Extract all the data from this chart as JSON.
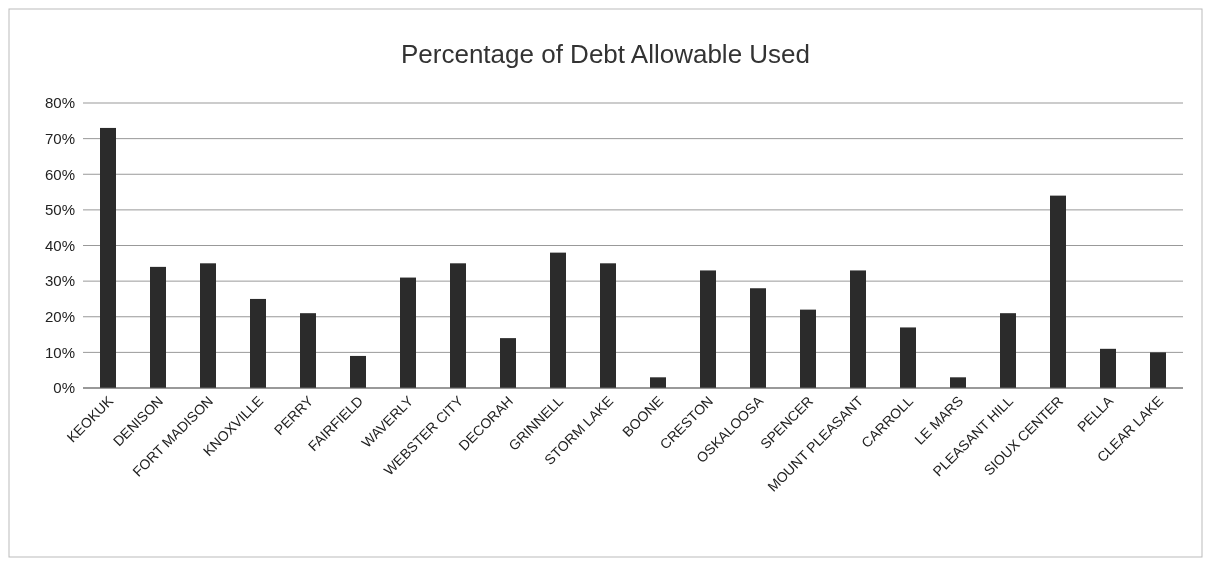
{
  "chart_data": {
    "type": "bar",
    "title": "Percentage of Debt Allowable Used",
    "categories": [
      "KEOKUK",
      "DENISON",
      "FORT MADISON",
      "KNOXVILLE",
      "PERRY",
      "FAIRFIELD",
      "WAVERLY",
      "WEBSTER CITY",
      "DECORAH",
      "GRINNELL",
      "STORM LAKE",
      "BOONE",
      "CRESTON",
      "OSKALOOSA",
      "SPENCER",
      "MOUNT PLEASANT",
      "CARROLL",
      "LE MARS",
      "PLEASANT HILL",
      "SIOUX CENTER",
      "PELLA",
      "CLEAR LAKE"
    ],
    "values": [
      73,
      34,
      35,
      25,
      21,
      9,
      31,
      35,
      14,
      38,
      35,
      3,
      33,
      28,
      22,
      33,
      17,
      3,
      21,
      54,
      11,
      10
    ],
    "color": "#2b2b2b",
    "ylim": [
      0,
      80
    ],
    "yticks": [
      {
        "value": 0,
        "label": "0%"
      },
      {
        "value": 10,
        "label": "10%"
      },
      {
        "value": 20,
        "label": "20%"
      },
      {
        "value": 30,
        "label": "30%"
      },
      {
        "value": 40,
        "label": "40%"
      },
      {
        "value": 50,
        "label": "50%"
      },
      {
        "value": 60,
        "label": "60%"
      },
      {
        "value": 70,
        "label": "70%"
      },
      {
        "value": 80,
        "label": "80%"
      }
    ],
    "grid": true
  }
}
